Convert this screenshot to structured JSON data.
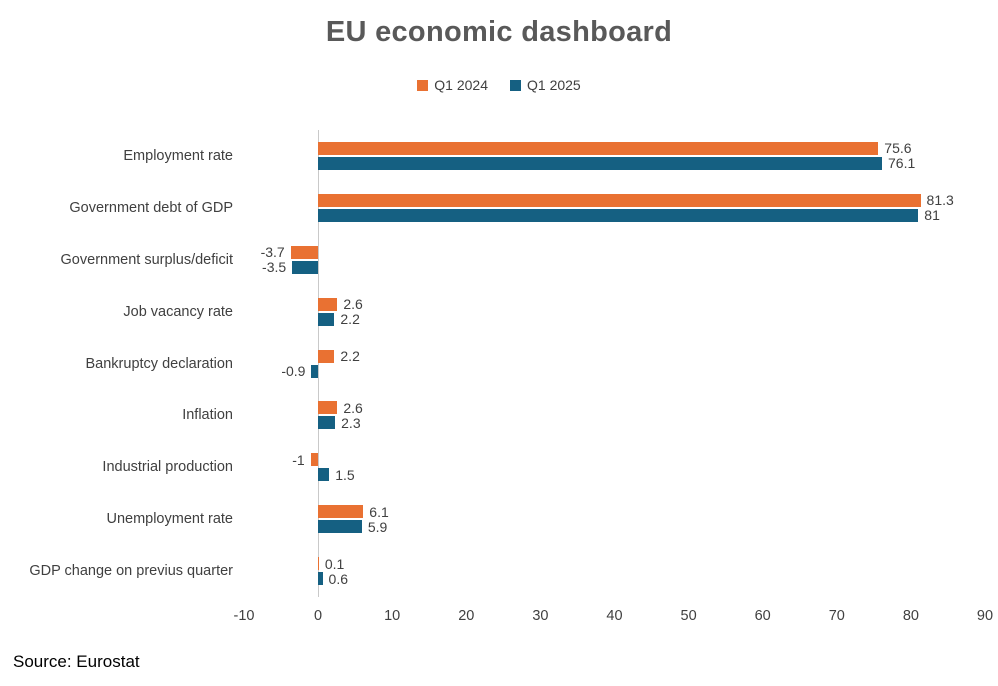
{
  "footer": {
    "source": "Source: Eurostat"
  },
  "chart_data": {
    "type": "bar",
    "orientation": "horizontal",
    "title": "EU economic dashboard",
    "categories": [
      "Employment rate",
      "Government debt of GDP",
      "Government surplus/deficit",
      "Job vacancy rate",
      "Bankruptcy declaration",
      "Inflation",
      "Industrial production",
      "Unemployment rate",
      "GDP change on previus quarter"
    ],
    "series": [
      {
        "name": "Q1 2024",
        "color": "#E97132",
        "values": [
          75.6,
          81.3,
          -3.7,
          2.6,
          2.2,
          2.6,
          -1,
          6.1,
          0.1
        ]
      },
      {
        "name": "Q1 2025",
        "color": "#156082",
        "values": [
          76.1,
          81,
          -3.5,
          2.2,
          -0.9,
          2.3,
          1.5,
          5.9,
          0.6
        ]
      }
    ],
    "xlim": [
      -10,
      90
    ],
    "x_ticks": [
      -10,
      0,
      10,
      20,
      30,
      40,
      50,
      60,
      70,
      80,
      90
    ],
    "grid": false,
    "legend_position": "top",
    "data_labels": true,
    "text_color": "#404040",
    "title_color": "#595959"
  }
}
